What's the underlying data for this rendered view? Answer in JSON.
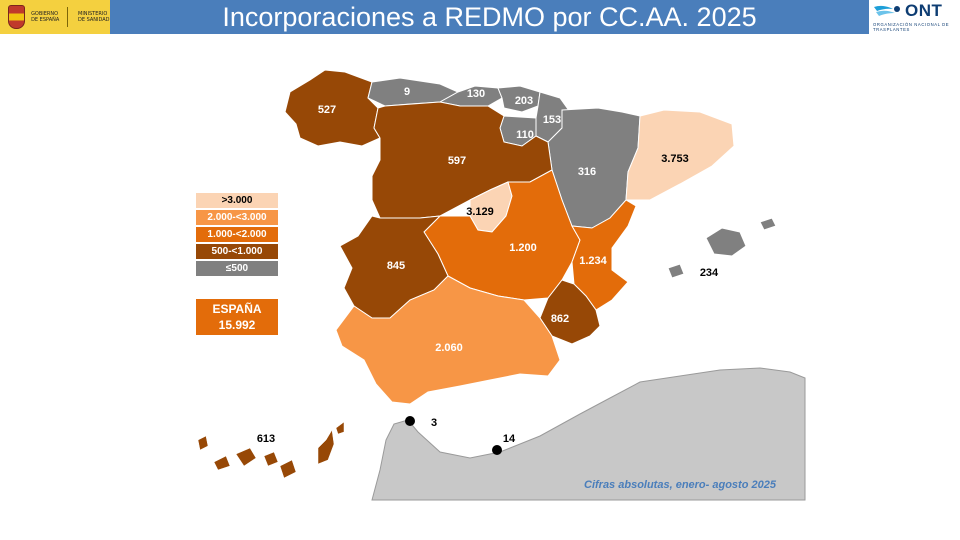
{
  "header": {
    "title": "Incorporaciones a REDMO por CC.AA. 2025",
    "gov_logo": {
      "line1": "GOBIERNO DE ESPAÑA",
      "line2": "MINISTERIO DE SANIDAD"
    },
    "ont_logo": {
      "name": "ONT",
      "subtitle": "ORGANIZACIÓN NACIONAL DE TRASPLANTES"
    }
  },
  "legend": [
    {
      "label": ">3.000",
      "color": "#fbd4b4",
      "text_color": "#000000"
    },
    {
      "label": "2.000-<3.000",
      "color": "#f79646",
      "text_color": "#ffffff"
    },
    {
      "label": "1.000-<2.000",
      "color": "#e36c0a",
      "text_color": "#ffffff"
    },
    {
      "label": "500-<1.000",
      "color": "#974806",
      "text_color": "#ffffff"
    },
    {
      "label": "≤500",
      "color": "#808080",
      "text_color": "#ffffff"
    }
  ],
  "total": {
    "label": "ESPAÑA",
    "value": "15.992"
  },
  "footnote": "Cifras absolutas, enero- agosto 2025",
  "regions": {
    "galicia": "527",
    "asturias": "9",
    "cantabria": "130",
    "pais_vasco": "203",
    "navarra": "153",
    "la_rioja": "110",
    "aragon": "316",
    "cataluna": "3.753",
    "castilla_leon": "597",
    "madrid": "3.129",
    "castilla_la_mancha": "1.200",
    "valencia": "1.234",
    "baleares": "234",
    "extremadura": "845",
    "murcia": "862",
    "andalucia": "2.060",
    "canarias": "613",
    "ceuta": "3",
    "melilla": "14"
  }
}
